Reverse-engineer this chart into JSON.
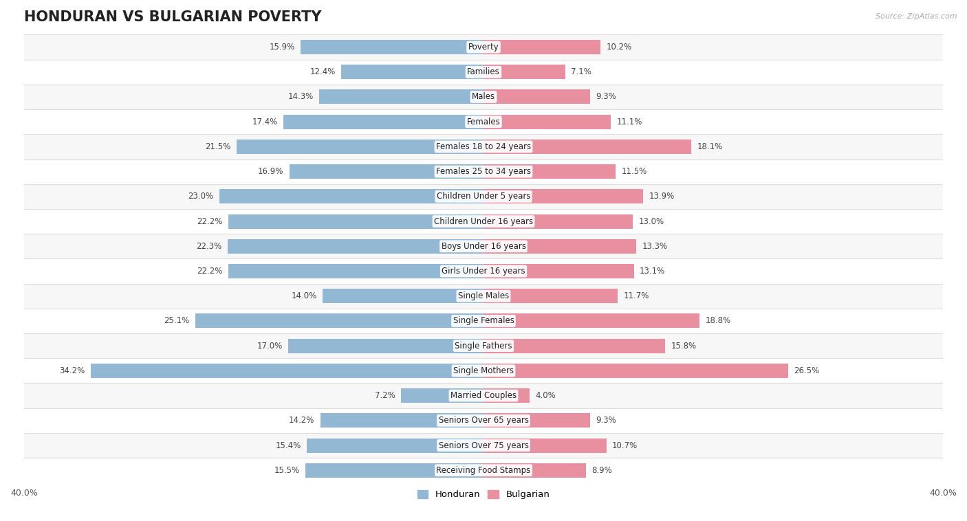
{
  "title": "HONDURAN VS BULGARIAN POVERTY",
  "source": "Source: ZipAtlas.com",
  "categories": [
    "Poverty",
    "Families",
    "Males",
    "Females",
    "Females 18 to 24 years",
    "Females 25 to 34 years",
    "Children Under 5 years",
    "Children Under 16 years",
    "Boys Under 16 years",
    "Girls Under 16 years",
    "Single Males",
    "Single Females",
    "Single Fathers",
    "Single Mothers",
    "Married Couples",
    "Seniors Over 65 years",
    "Seniors Over 75 years",
    "Receiving Food Stamps"
  ],
  "honduran": [
    15.9,
    12.4,
    14.3,
    17.4,
    21.5,
    16.9,
    23.0,
    22.2,
    22.3,
    22.2,
    14.0,
    25.1,
    17.0,
    34.2,
    7.2,
    14.2,
    15.4,
    15.5
  ],
  "bulgarian": [
    10.2,
    7.1,
    9.3,
    11.1,
    18.1,
    11.5,
    13.9,
    13.0,
    13.3,
    13.1,
    11.7,
    18.8,
    15.8,
    26.5,
    4.0,
    9.3,
    10.7,
    8.9
  ],
  "honduran_color": "#92B8D4",
  "bulgarian_color": "#E8909F",
  "row_bg_even": "#f7f7f7",
  "row_bg_odd": "#ffffff",
  "fig_bg": "#ffffff",
  "xlim": 40.0,
  "bar_height": 0.58,
  "title_fontsize": 15,
  "label_fontsize": 8.5,
  "value_fontsize": 8.5
}
